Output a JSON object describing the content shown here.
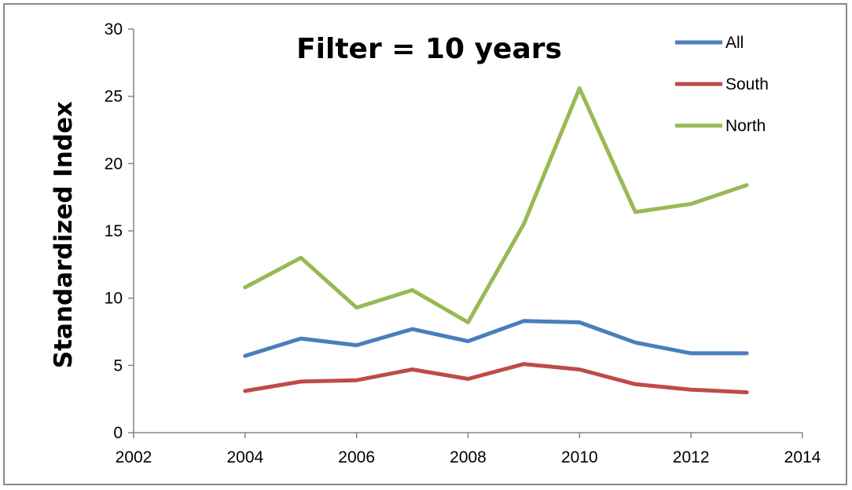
{
  "chart_data": {
    "type": "line",
    "title": "Filter = 10 years",
    "xlabel": "",
    "ylabel": "Standardized Index",
    "xlim": [
      2002,
      2014
    ],
    "ylim": [
      0,
      30
    ],
    "x_ticks": [
      2002,
      2004,
      2006,
      2008,
      2010,
      2012,
      2014
    ],
    "y_ticks": [
      0,
      5,
      10,
      15,
      20,
      25,
      30
    ],
    "grid": false,
    "legend_position": "top-right",
    "x": [
      2004,
      2005,
      2006,
      2007,
      2008,
      2009,
      2010,
      2011,
      2012,
      2013
    ],
    "series": [
      {
        "name": "All",
        "color": "#4a7ebb",
        "values": [
          5.7,
          7.0,
          6.5,
          7.7,
          6.8,
          8.3,
          8.2,
          6.7,
          5.9,
          5.9
        ]
      },
      {
        "name": "South",
        "color": "#be4b48",
        "values": [
          3.1,
          3.8,
          3.9,
          4.7,
          4.0,
          5.1,
          4.7,
          3.6,
          3.2,
          3.0
        ]
      },
      {
        "name": "North",
        "color": "#98b954",
        "values": [
          10.8,
          13.0,
          9.3,
          10.6,
          8.2,
          15.5,
          25.6,
          16.4,
          17.0,
          18.4
        ]
      }
    ]
  }
}
